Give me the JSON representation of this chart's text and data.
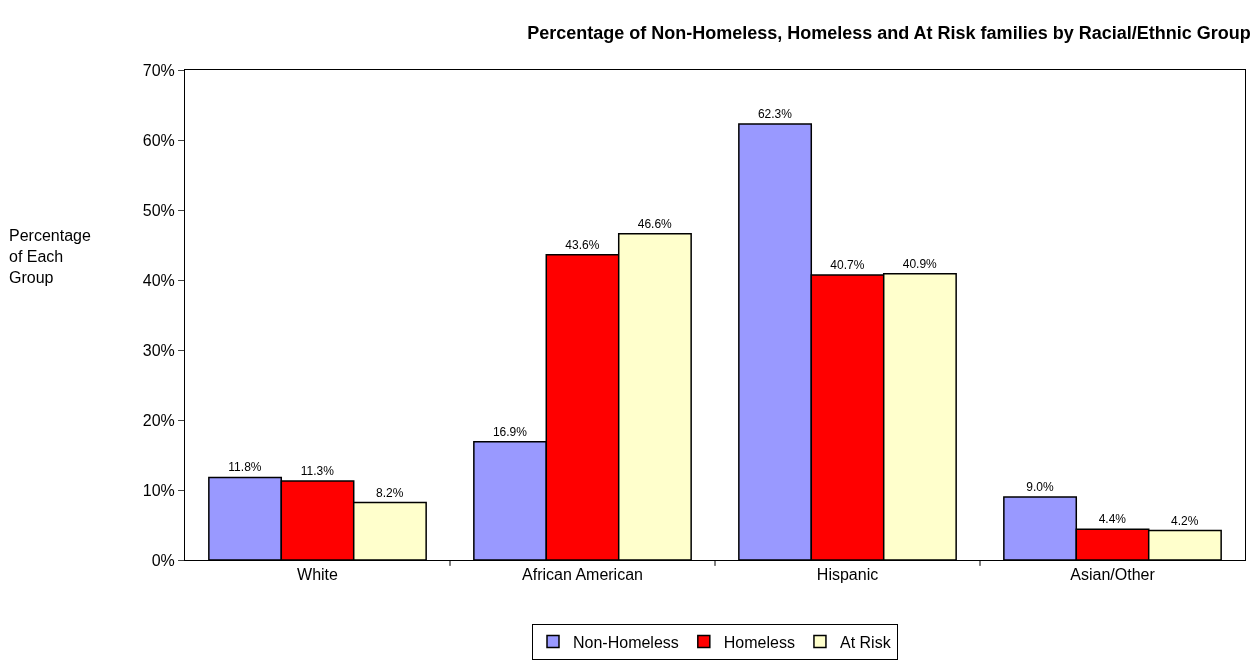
{
  "chart_data": {
    "type": "bar",
    "title": "Percentage of Non-Homeless, Homeless and At Risk families by Racial/Ethnic Group",
    "ylabel": "Percentage of Each Group",
    "categories": [
      "White",
      "African American",
      "Hispanic",
      "Asian/Other"
    ],
    "series": [
      {
        "name": "Non-Homeless",
        "color": "#9999ff",
        "values": [
          11.8,
          16.9,
          62.3,
          9.0
        ],
        "value_labels": [
          "11.8%",
          "16.9%",
          "62.3%",
          "9.0%"
        ]
      },
      {
        "name": "Homeless",
        "color": "#ff0000",
        "values": [
          11.3,
          43.6,
          40.7,
          4.4
        ],
        "value_labels": [
          "11.3%",
          "43.6%",
          "40.7%",
          "4.4%"
        ]
      },
      {
        "name": "At Risk",
        "color": "#ffffcc",
        "values": [
          8.2,
          46.6,
          40.9,
          4.2
        ],
        "value_labels": [
          "8.2%",
          "46.6%",
          "40.9%",
          "4.2%"
        ]
      }
    ],
    "ylim": [
      0,
      70
    ],
    "yticks": [
      {
        "value": 0,
        "label": "0%"
      },
      {
        "value": 10,
        "label": "10%"
      },
      {
        "value": 20,
        "label": "20%"
      },
      {
        "value": 30,
        "label": "30%"
      },
      {
        "value": 40,
        "label": "40%"
      },
      {
        "value": 50,
        "label": "50%"
      },
      {
        "value": 60,
        "label": "60%"
      },
      {
        "value": 70,
        "label": "70%"
      }
    ],
    "legend": "bottom"
  }
}
